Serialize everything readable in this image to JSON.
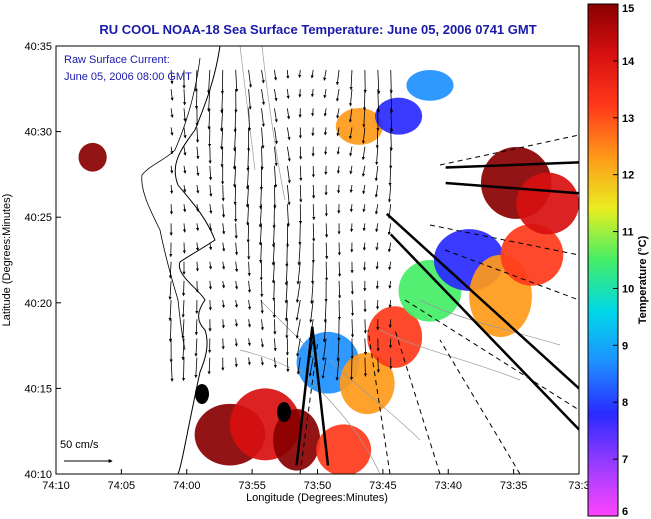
{
  "chart_data": {
    "type": "heatmap",
    "title": "RU COOL  NOAA-18  Sea Surface Temperature:  June 05, 2006 0741 GMT",
    "annotation_lines": [
      "Raw Surface Current:",
      "June 05, 2006 08:00 GMT"
    ],
    "scale_label": "50 cm/s",
    "xlabel": "Longitude (Degrees:Minutes)",
    "ylabel": "Latitude (Degrees:Minutes)",
    "x_ticks": [
      "74:10",
      "74:05",
      "74:00",
      "73:55",
      "73:50",
      "73:45",
      "73:40",
      "73:35",
      "73:3"
    ],
    "y_ticks": [
      "40:10",
      "40:15",
      "40:20",
      "40:25",
      "40:30",
      "40:35"
    ],
    "xlim": [
      -74.1667,
      -73.5
    ],
    "ylim": [
      40.1667,
      40.5833
    ],
    "colorbar": {
      "label": "Temperature (°C)",
      "ticks": [
        "6",
        "7",
        "8",
        "9",
        "10",
        "11",
        "12",
        "13",
        "14",
        "15"
      ],
      "range": [
        6,
        15
      ]
    },
    "sst_patches": [
      {
        "cx": -73.945,
        "cy": 40.205,
        "rx": 0.045,
        "ry": 0.03,
        "t": 14.6
      },
      {
        "cx": -73.9,
        "cy": 40.215,
        "rx": 0.045,
        "ry": 0.035,
        "t": 13.5
      },
      {
        "cx": -73.86,
        "cy": 40.2,
        "rx": 0.03,
        "ry": 0.03,
        "t": 14.2
      },
      {
        "cx": -73.8,
        "cy": 40.19,
        "rx": 0.035,
        "ry": 0.025,
        "t": 13.0
      },
      {
        "cx": -73.82,
        "cy": 40.275,
        "rx": 0.04,
        "ry": 0.03,
        "t": 8.6
      },
      {
        "cx": -73.77,
        "cy": 40.255,
        "rx": 0.035,
        "ry": 0.03,
        "t": 11.6
      },
      {
        "cx": -73.735,
        "cy": 40.3,
        "rx": 0.035,
        "ry": 0.03,
        "t": 12.4
      },
      {
        "cx": -73.69,
        "cy": 40.345,
        "rx": 0.04,
        "ry": 0.03,
        "t": 9.8
      },
      {
        "cx": -73.64,
        "cy": 40.375,
        "rx": 0.045,
        "ry": 0.03,
        "t": 7.8
      },
      {
        "cx": -73.6,
        "cy": 40.34,
        "rx": 0.04,
        "ry": 0.04,
        "t": 12.3
      },
      {
        "cx": -73.56,
        "cy": 40.38,
        "rx": 0.04,
        "ry": 0.03,
        "t": 13.0
      },
      {
        "cx": -73.58,
        "cy": 40.45,
        "rx": 0.045,
        "ry": 0.035,
        "t": 14.5
      },
      {
        "cx": -73.54,
        "cy": 40.43,
        "rx": 0.04,
        "ry": 0.03,
        "t": 13.8
      },
      {
        "cx": -73.78,
        "cy": 40.505,
        "rx": 0.03,
        "ry": 0.018,
        "t": 11.5
      },
      {
        "cx": -73.73,
        "cy": 40.515,
        "rx": 0.03,
        "ry": 0.018,
        "t": 7.2
      },
      {
        "cx": -73.69,
        "cy": 40.545,
        "rx": 0.03,
        "ry": 0.015,
        "t": 8.5
      },
      {
        "cx": -74.12,
        "cy": 40.475,
        "rx": 0.018,
        "ry": 0.014,
        "t": 14.4
      }
    ],
    "vector_field": {
      "lon_range": [
        -74.02,
        -73.74
      ],
      "lat_range": [
        40.28,
        40.56
      ],
      "nx": 18,
      "ny": 16,
      "scale_cm_s": 50
    },
    "coverage_lines": [
      {
        "from": [
          -73.84,
          40.31
        ],
        "to": [
          -73.82,
          40.175
        ],
        "style": "solid"
      },
      {
        "from": [
          -73.84,
          40.31
        ],
        "to": [
          -73.86,
          40.175
        ],
        "style": "solid"
      },
      {
        "from": [
          -73.74,
          40.4
        ],
        "to": [
          -73.5,
          40.21
        ],
        "style": "solid"
      },
      {
        "from": [
          -73.745,
          40.42
        ],
        "to": [
          -73.5,
          40.25
        ],
        "style": "solid"
      },
      {
        "from": [
          -73.67,
          40.45
        ],
        "to": [
          -73.5,
          40.44
        ],
        "style": "solid"
      },
      {
        "from": [
          -73.67,
          40.465
        ],
        "to": [
          -73.5,
          40.47
        ],
        "style": "solid"
      }
    ]
  }
}
